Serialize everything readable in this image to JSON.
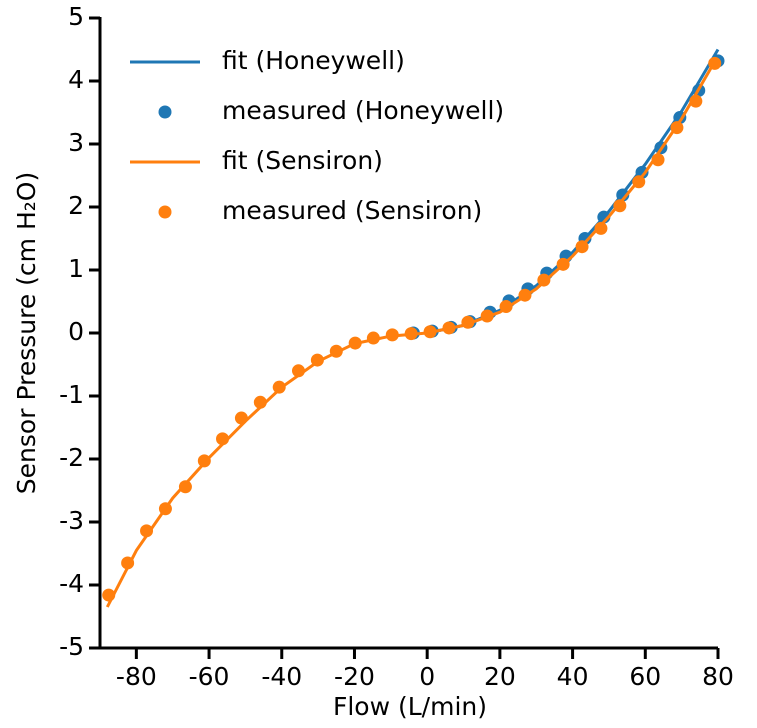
{
  "chart_data": {
    "type": "line",
    "xlabel": "Flow (L/min)",
    "ylabel": "Sensor Pressure (cm H₂O)",
    "xlim": [
      -90,
      80
    ],
    "ylim": [
      -5,
      5
    ],
    "xticks": [
      -80,
      -60,
      -40,
      -20,
      0,
      20,
      40,
      60,
      80
    ],
    "yticks": [
      -5,
      -4,
      -3,
      -2,
      -1,
      0,
      1,
      2,
      3,
      4,
      5
    ],
    "legend": "upper left",
    "series": [
      {
        "name": "fit (Honeywell)",
        "type": "line",
        "color": "#1f77b4",
        "x": [
          0,
          10,
          20,
          30,
          40,
          50,
          60,
          70,
          80
        ],
        "values": [
          0,
          0.12,
          0.36,
          0.75,
          1.28,
          1.93,
          2.68,
          3.52,
          4.5
        ]
      },
      {
        "name": "measured (Honeywell)",
        "type": "scatter",
        "color": "#1f77b4",
        "x": [
          -3.8,
          1.4,
          6.6,
          11.8,
          17.3,
          22.5,
          27.7,
          32.9,
          38.2,
          43.4,
          48.6,
          53.8,
          59.1,
          64.3,
          69.5,
          74.7,
          80
        ],
        "values": [
          0,
          0.03,
          0.09,
          0.18,
          0.33,
          0.51,
          0.7,
          0.95,
          1.22,
          1.5,
          1.84,
          2.19,
          2.55,
          2.94,
          3.42,
          3.85,
          4.32
        ]
      },
      {
        "name": "fit (Sensiron)",
        "type": "line",
        "color": "#ff7f0e",
        "x": [
          -88,
          -80,
          -70,
          -60,
          -50,
          -40,
          -30,
          -20,
          -10,
          0,
          10,
          20,
          30,
          40,
          50,
          60,
          70,
          79
        ],
        "values": [
          -4.35,
          -3.45,
          -2.62,
          -1.98,
          -1.4,
          -0.86,
          -0.45,
          -0.17,
          -0.05,
          0,
          0.12,
          0.33,
          0.7,
          1.22,
          1.85,
          2.55,
          3.4,
          4.3
        ]
      },
      {
        "name": "measured (Sensiron)",
        "type": "scatter",
        "color": "#ff7f0e",
        "x": [
          -87.6,
          -82.4,
          -77.2,
          -72,
          -66.5,
          -61.3,
          -56.3,
          -51.1,
          -45.9,
          -40.7,
          -35.4,
          -30.2,
          -25,
          -19.8,
          -14.8,
          -9.6,
          -4.4,
          0.8,
          6,
          11.2,
          16.5,
          21.7,
          26.9,
          32.1,
          37.4,
          42.6,
          47.8,
          53,
          58.2,
          63.5,
          68.7,
          73.9,
          79.1
        ],
        "values": [
          -4.16,
          -3.65,
          -3.14,
          -2.79,
          -2.44,
          -2.03,
          -1.68,
          -1.35,
          -1.1,
          -0.86,
          -0.6,
          -0.43,
          -0.29,
          -0.16,
          -0.08,
          -0.03,
          -0.01,
          0.02,
          0.08,
          0.17,
          0.27,
          0.42,
          0.6,
          0.84,
          1.09,
          1.37,
          1.66,
          2.02,
          2.4,
          2.75,
          3.26,
          3.68,
          4.28
        ]
      }
    ]
  }
}
